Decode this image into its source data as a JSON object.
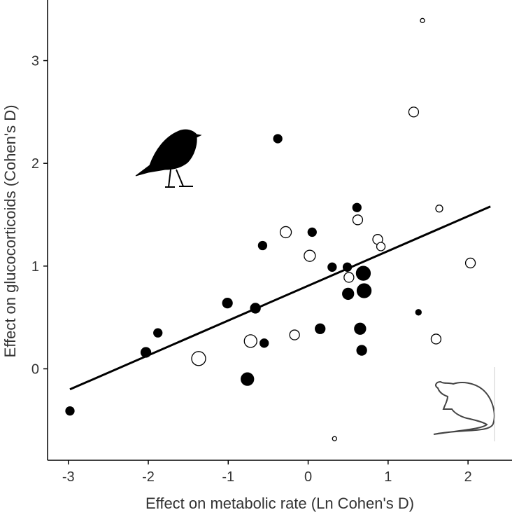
{
  "chart_data": {
    "type": "scatter",
    "x_label": "Effect on metabolic rate (Ln Cohen's D)",
    "y_label": "Effect on glucocorticoids (Cohen's D)",
    "xlim": [
      -3.26,
      2.55
    ],
    "ylim": [
      -0.89,
      3.59
    ],
    "xticks": [
      -3,
      -2,
      -1,
      0,
      1,
      2
    ],
    "yticks": [
      0,
      1,
      2,
      3
    ],
    "series": [
      {
        "color": "#000000",
        "filled": true,
        "x": [
          -2.98,
          -2.03,
          -1.88,
          -1.01,
          -0.76,
          -0.66,
          -0.55,
          -0.57,
          -0.38,
          0.05,
          0.15,
          0.3,
          0.49,
          0.5,
          0.61,
          0.65,
          0.67,
          0.69,
          0.7,
          1.38
        ],
        "values": [
          -0.41,
          0.16,
          0.35,
          0.64,
          -0.1,
          0.59,
          0.25,
          1.2,
          2.24,
          1.33,
          0.39,
          0.99,
          0.99,
          0.73,
          1.57,
          0.39,
          0.18,
          0.93,
          0.76,
          0.55
        ],
        "sizes": [
          6,
          7,
          6,
          7,
          9,
          7,
          6,
          6,
          6,
          6,
          7,
          6,
          6,
          8,
          6,
          8,
          7,
          10,
          10,
          4
        ]
      },
      {
        "color": "#000000",
        "filled": false,
        "x": [
          1.43,
          1.32,
          -0.28,
          0.02,
          0.62,
          0.87,
          0.91,
          1.64,
          2.03,
          0.51,
          -0.72,
          -0.17,
          -1.37,
          1.6,
          0.33
        ],
        "values": [
          3.39,
          2.5,
          1.33,
          1.1,
          1.45,
          1.26,
          1.19,
          1.56,
          1.03,
          0.89,
          0.27,
          0.33,
          0.1,
          0.29,
          -0.68
        ],
        "sizes": [
          3,
          7,
          8,
          8,
          7,
          7,
          6,
          5,
          7,
          7,
          9,
          7,
          10,
          7,
          3
        ]
      }
    ],
    "trendline": {
      "x": [
        -2.98,
        2.28
      ],
      "values": [
        -0.2,
        1.58
      ]
    }
  }
}
